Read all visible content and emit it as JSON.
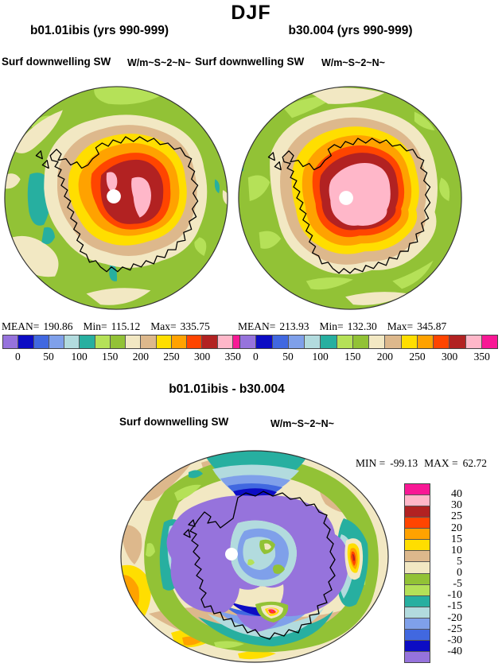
{
  "title": "DJF",
  "panels": [
    {
      "title": "b01.01ibis (yrs 990-999)",
      "field_label": "Surf downwelling SW",
      "units": "W/m~S~2~N~",
      "stats": {
        "mean_label": "MEAN=",
        "mean": "190.86",
        "min_label": "Min=",
        "min": "115.12",
        "max_label": "Max=",
        "max": "335.75"
      },
      "colorbar_tick_labels": [
        "0",
        "50",
        "100",
        "150",
        "200",
        "250",
        "300",
        "350"
      ]
    },
    {
      "title": "b30.004 (yrs 990-999)",
      "field_label": "Surf downwelling SW",
      "units": "W/m~S~2~N~",
      "stats": {
        "mean_label": "MEAN=",
        "mean": "213.93",
        "min_label": "Min=",
        "min": "132.30",
        "max_label": "Max=",
        "max": "345.87"
      },
      "colorbar_tick_labels": [
        "0",
        "50",
        "100",
        "150",
        "200",
        "250",
        "300",
        "350"
      ]
    }
  ],
  "diff": {
    "title": "b01.01ibis - b30.004",
    "field_label": "Surf downwelling SW",
    "units": "W/m~S~2~N~",
    "min_label": "MIN =",
    "min": "-99.13",
    "max_label": "MAX =",
    "max": "62.72",
    "colorbar_tick_labels": [
      "40",
      "30",
      "25",
      "20",
      "15",
      "10",
      "5",
      "0",
      "-5",
      "-10",
      "-15",
      "-20",
      "-25",
      "-30",
      "-40"
    ]
  },
  "palette": {
    "purple": "#9673DC",
    "navy": "#0C0CC4",
    "royal": "#4168E0",
    "lightblue": "#7FA0EA",
    "palecyan": "#B2DBDE",
    "teal": "#27AFA0",
    "lightgreen": "#B5E158",
    "green": "#92C236",
    "cream": "#F2E8C3",
    "tan": "#DDB88C",
    "yellow": "#FFDE00",
    "orange": "#FFA200",
    "orangered": "#FF4500",
    "brick": "#B22222",
    "pink": "#FFB7C9",
    "magenta": "#F81895",
    "coastline": "#000000",
    "pole_marker": "#FFFFFF",
    "background": "#FFFFFF"
  },
  "colorbar_colors_low_to_high": [
    "purple",
    "navy",
    "royal",
    "lightblue",
    "palecyan",
    "teal",
    "lightgreen",
    "green",
    "cream",
    "tan",
    "yellow",
    "orange",
    "orangered",
    "brick",
    "pink",
    "magenta"
  ],
  "chart_data": [
    {
      "type": "heatmap",
      "title": "b01.01ibis (yrs 990-999)",
      "season": "DJF",
      "variable": "Surf downwelling SW",
      "units": "W/m~S~2~N~",
      "projection": "south-polar (Antarctica)",
      "stats": {
        "mean": 190.86,
        "min": 115.12,
        "max": 335.75
      },
      "contour_levels": [
        0,
        25,
        50,
        75,
        100,
        125,
        150,
        175,
        200,
        225,
        250,
        275,
        300,
        325,
        350
      ],
      "colorbar_ticks": [
        0,
        50,
        100,
        150,
        200,
        250,
        300,
        350
      ],
      "legend_position": "bottom"
    },
    {
      "type": "heatmap",
      "title": "b30.004 (yrs 990-999)",
      "season": "DJF",
      "variable": "Surf downwelling SW",
      "units": "W/m~S~2~N~",
      "projection": "south-polar (Antarctica)",
      "stats": {
        "mean": 213.93,
        "min": 132.3,
        "max": 345.87
      },
      "contour_levels": [
        0,
        25,
        50,
        75,
        100,
        125,
        150,
        175,
        200,
        225,
        250,
        275,
        300,
        325,
        350
      ],
      "colorbar_ticks": [
        0,
        50,
        100,
        150,
        200,
        250,
        300,
        350
      ],
      "legend_position": "bottom"
    },
    {
      "type": "heatmap",
      "title": "b01.01ibis - b30.004",
      "season": "DJF",
      "variable": "Surf downwelling SW (difference)",
      "units": "W/m~S~2~N~",
      "projection": "south-polar (Antarctica)",
      "stats": {
        "min": -99.13,
        "max": 62.72
      },
      "contour_levels": [
        -40,
        -30,
        -25,
        -20,
        -15,
        -10,
        -5,
        0,
        5,
        10,
        15,
        20,
        25,
        30,
        40
      ],
      "legend_position": "right"
    }
  ]
}
